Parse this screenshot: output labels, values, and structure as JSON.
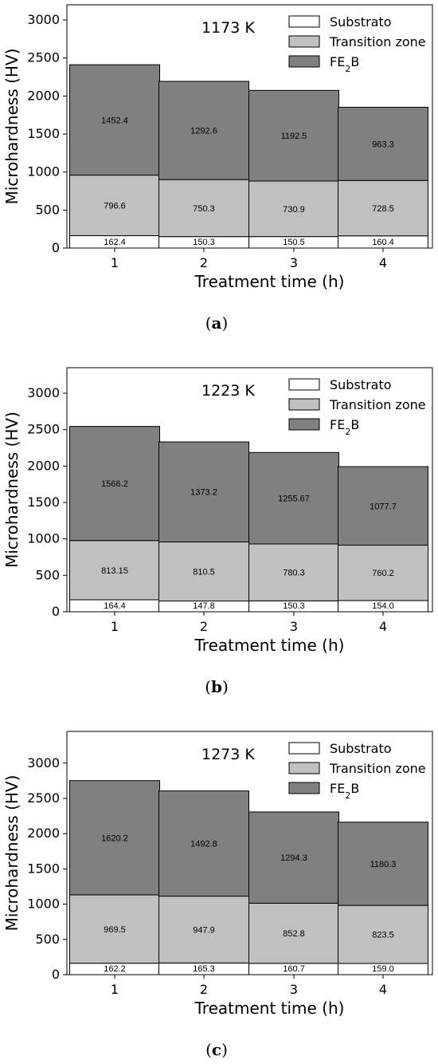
{
  "chart_data": [
    {
      "type": "bar",
      "stacked": true,
      "caption": "a",
      "annotation": "1173 K",
      "xlabel": "Treatment time (h)",
      "ylabel": "Microhardness (HV)",
      "categories": [
        "1",
        "2",
        "3",
        "4"
      ],
      "ylim": [
        0,
        3200
      ],
      "yticks": [
        0,
        500,
        1000,
        1500,
        2000,
        2500,
        3000
      ],
      "legend": "top-right",
      "series": [
        {
          "name": "Substrato",
          "color": "#ffffff",
          "values": [
            162.4,
            150.3,
            150.5,
            160.4
          ],
          "labels": [
            "162.4",
            "150.3",
            "150.5",
            "160.4"
          ]
        },
        {
          "name": "Transition zone",
          "color": "#c0c0c0",
          "values": [
            796.6,
            750.3,
            730.9,
            728.5
          ],
          "labels": [
            "796.6",
            "750.3",
            "730.9",
            "728.5"
          ]
        },
        {
          "name": "FE₂B",
          "color": "#808080",
          "values": [
            1452.4,
            1292.6,
            1192.5,
            963.3
          ],
          "labels": [
            "1452.4",
            "1292.6",
            "1192.5",
            "963.3"
          ]
        }
      ]
    },
    {
      "type": "bar",
      "stacked": true,
      "caption": "b",
      "annotation": "1223 K",
      "xlabel": "Treatment time (h)",
      "ylabel": "Microhardness (HV)",
      "categories": [
        "1",
        "2",
        "3",
        "4"
      ],
      "ylim": [
        0,
        3350
      ],
      "yticks": [
        0,
        500,
        1000,
        1500,
        2000,
        2500,
        3000
      ],
      "legend": "top-right",
      "series": [
        {
          "name": "Substrato",
          "color": "#ffffff",
          "values": [
            164.4,
            147.8,
            150.3,
            154.0
          ],
          "labels": [
            "164.4",
            "147.8",
            "150.3",
            "154.0"
          ]
        },
        {
          "name": "Transition zone",
          "color": "#c0c0c0",
          "values": [
            813.15,
            810.5,
            780.3,
            760.2
          ],
          "labels": [
            "813.15",
            "810.5",
            "780.3",
            "760.2"
          ]
        },
        {
          "name": "FE₂B",
          "color": "#808080",
          "values": [
            1566.2,
            1373.2,
            1255.67,
            1077.7
          ],
          "labels": [
            "1566.2",
            "1373.2",
            "1255.67",
            "1077.7"
          ]
        }
      ]
    },
    {
      "type": "bar",
      "stacked": true,
      "caption": "c",
      "annotation": "1273 K",
      "xlabel": "Treatment time (h)",
      "ylabel": "Microhardness (HV)",
      "categories": [
        "1",
        "2",
        "3",
        "4"
      ],
      "ylim": [
        0,
        3450
      ],
      "yticks": [
        0,
        500,
        1000,
        1500,
        2000,
        2500,
        3000
      ],
      "legend": "top-right",
      "series": [
        {
          "name": "Substrato",
          "color": "#ffffff",
          "values": [
            162.2,
            165.3,
            160.7,
            159.0
          ],
          "labels": [
            "162.2",
            "165.3",
            "160.7",
            "159.0"
          ]
        },
        {
          "name": "Transition zone",
          "color": "#c0c0c0",
          "values": [
            969.5,
            947.9,
            852.8,
            823.5
          ],
          "labels": [
            "969.5",
            "947.9",
            "852.8",
            "823.5"
          ]
        },
        {
          "name": "FE₂B",
          "color": "#808080",
          "values": [
            1620.2,
            1492.8,
            1294.3,
            1180.3
          ],
          "labels": [
            "1620.2",
            "1492.8",
            "1294.3",
            "1180.3"
          ]
        }
      ]
    }
  ]
}
